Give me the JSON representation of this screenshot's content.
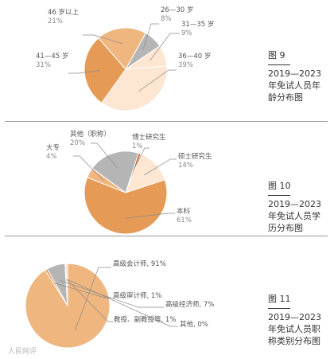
{
  "colors": {
    "dark_orange": "#e59b56",
    "light_orange": "#f0b680",
    "pale": "#fde6d2",
    "gray": "#b5b5b5",
    "brown": "#c8662e",
    "leader": "#8a8a8a",
    "pct": "#888888",
    "name": "#555555"
  },
  "watermark": "人民网评",
  "chart_data": [
    {
      "type": "pie",
      "caption": {
        "figure": "图 9",
        "line1": "2019—2023",
        "line2": "年免试人员年",
        "line3": "龄分布图"
      },
      "slices": [
        {
          "name": "26—30 岁",
          "value": 8,
          "pct_label": "8%",
          "color": "#b5b5b5"
        },
        {
          "name": "31—35 岁",
          "value": 9,
          "pct_label": "9%",
          "color": "#fde6d2"
        },
        {
          "name": "36—40 岁",
          "value": 39,
          "pct_label": "39%",
          "color": "#fde6d2"
        },
        {
          "name": "41—45 岁",
          "value": 31,
          "pct_label": "31%",
          "color": "#e59b56"
        },
        {
          "name": "46 岁以上",
          "value": 21,
          "pct_label": "21%",
          "color": "#f0b680"
        }
      ]
    },
    {
      "type": "pie",
      "caption": {
        "figure": "图 10",
        "line1": "2019—2023",
        "line2": "年免试人员学",
        "line3": "历分布图"
      },
      "slices": [
        {
          "name": "博士研究生",
          "value": 1,
          "pct_label": "1%",
          "color": "#c8662e"
        },
        {
          "name": "硕士研究生",
          "value": 14,
          "pct_label": "14%",
          "color": "#fde6d2"
        },
        {
          "name": "本科",
          "value": 61,
          "pct_label": "61%",
          "color": "#e59b56"
        },
        {
          "name": "大专",
          "value": 4,
          "pct_label": "4%",
          "color": "#f0b680"
        },
        {
          "name": "其他（职称）",
          "value": 20,
          "pct_label": "20%",
          "color": "#b5b5b5"
        }
      ]
    },
    {
      "type": "pie",
      "caption": {
        "figure": "图 11",
        "line1": "2019—2023",
        "line2": "年免试人员职",
        "line3": "称类别分布图"
      },
      "slices": [
        {
          "name": "高级会计师",
          "value": 91,
          "label": "高级会计师, 91%",
          "color": "#f0b680"
        },
        {
          "name": "高级审计师",
          "value": 1,
          "label": "高级审计师, 1%",
          "color": "#e59b56"
        },
        {
          "name": "高级经济师",
          "value": 7,
          "label": "高级经济师, 7%",
          "color": "#b5b5b5"
        },
        {
          "name": "教授、副教授等",
          "value": 1,
          "label": "教授、副教授等, 1%",
          "color": "#fde6d2"
        },
        {
          "name": "其他",
          "value": 0,
          "label": "其他, 0%",
          "color": "#c8662e"
        }
      ]
    }
  ]
}
